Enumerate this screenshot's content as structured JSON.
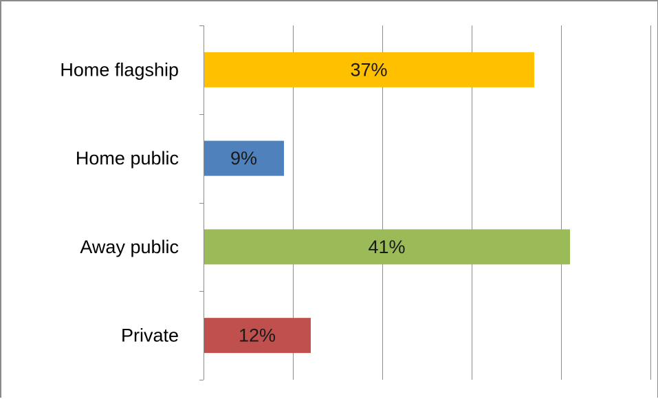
{
  "chart_data": {
    "type": "bar",
    "orientation": "horizontal",
    "categories": [
      "Home flagship",
      "Home public",
      "Away public",
      "Private"
    ],
    "values": [
      37,
      9,
      41,
      12
    ],
    "data_labels": [
      "37%",
      "9%",
      "41%",
      "12%"
    ],
    "colors": [
      "#FFC000",
      "#4F81BD",
      "#9BBB59",
      "#C0504D"
    ],
    "xlim": [
      0,
      50
    ],
    "x_gridline_step": 10,
    "grid": true,
    "legend": "none",
    "title": "",
    "xlabel": "",
    "ylabel": ""
  }
}
